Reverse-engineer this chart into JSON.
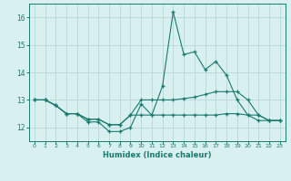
{
  "xlabel": "Humidex (Indice chaleur)",
  "x_values": [
    0,
    1,
    2,
    3,
    4,
    5,
    6,
    7,
    8,
    9,
    10,
    11,
    12,
    13,
    14,
    15,
    16,
    17,
    18,
    19,
    20,
    21,
    22,
    23
  ],
  "line1": [
    13.0,
    13.0,
    12.8,
    12.5,
    12.5,
    12.2,
    12.2,
    11.85,
    11.85,
    12.0,
    12.85,
    12.45,
    13.5,
    16.2,
    14.65,
    14.75,
    14.1,
    14.4,
    13.9,
    13.0,
    12.45,
    12.25,
    12.25,
    12.25
  ],
  "line2": [
    13.0,
    13.0,
    12.8,
    12.5,
    12.5,
    12.3,
    12.3,
    12.1,
    12.1,
    12.45,
    13.0,
    13.0,
    13.0,
    13.0,
    13.05,
    13.1,
    13.2,
    13.3,
    13.3,
    13.3,
    13.0,
    12.45,
    12.25,
    12.25
  ],
  "line3": [
    13.0,
    13.0,
    12.8,
    12.5,
    12.5,
    12.3,
    12.3,
    12.1,
    12.1,
    12.45,
    12.45,
    12.45,
    12.45,
    12.45,
    12.45,
    12.45,
    12.45,
    12.45,
    12.5,
    12.5,
    12.45,
    12.45,
    12.25,
    12.25
  ],
  "ylim": [
    11.5,
    16.5
  ],
  "yticks": [
    12,
    13,
    14,
    15,
    16
  ],
  "xticks": [
    0,
    1,
    2,
    3,
    4,
    5,
    6,
    7,
    8,
    9,
    10,
    11,
    12,
    13,
    14,
    15,
    16,
    17,
    18,
    19,
    20,
    21,
    22,
    23
  ],
  "line_color": "#1a7a6e",
  "bg_color": "#d8f0f0",
  "grid_color": "#b8d8d8"
}
